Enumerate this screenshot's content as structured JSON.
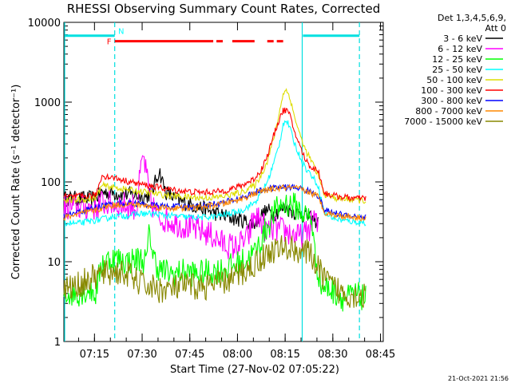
{
  "chart_data": {
    "type": "line",
    "title": "RHESSI Observing Summary Count Rates, Corrected",
    "xlabel": "Start Time (27-Nov-02 07:05:22)",
    "ylabel": "Corrected Count Rate (s⁻¹ detector⁻¹)",
    "ylim": [
      1,
      10000
    ],
    "yscale": "log",
    "xlim_minutes_after_start": [
      0,
      100.5
    ],
    "xticks": [
      {
        "label": "07:15",
        "t": 9.63
      },
      {
        "label": "07:30",
        "t": 24.63
      },
      {
        "label": "07:45",
        "t": 39.63
      },
      {
        "label": "08:00",
        "t": 54.63
      },
      {
        "label": "08:15",
        "t": 69.63
      },
      {
        "label": "08:30",
        "t": 84.63
      },
      {
        "label": "08:45",
        "t": 99.63
      }
    ],
    "yticks": [
      {
        "label": "1",
        "v": 1
      },
      {
        "label": "10",
        "v": 10
      },
      {
        "label": "100",
        "v": 100
      },
      {
        "label": "1000",
        "v": 1000
      },
      {
        "label": "10000",
        "v": 10000
      }
    ],
    "legend_header": [
      "Det 1,3,4,5,6,9,",
      "Att 0"
    ],
    "legend_position": "right",
    "series": [
      {
        "name": "3 - 6 keV",
        "color": "#000000",
        "points": [
          [
            0,
            62
          ],
          [
            10,
            62
          ],
          [
            12,
            75
          ],
          [
            20,
            70
          ],
          [
            26,
            65
          ],
          [
            28,
            80
          ],
          [
            30,
            140
          ],
          [
            32,
            75
          ],
          [
            36,
            58
          ],
          [
            40,
            52
          ],
          [
            44,
            46
          ],
          [
            48,
            40
          ],
          [
            52,
            36
          ],
          [
            56,
            33
          ],
          [
            60,
            30
          ],
          [
            62,
            38
          ],
          [
            64,
            44
          ],
          [
            66,
            40
          ],
          [
            68,
            44
          ],
          [
            70,
            48
          ],
          [
            72,
            42
          ],
          [
            74,
            40
          ],
          [
            76,
            38
          ],
          [
            78,
            34
          ],
          [
            80,
            32
          ]
        ]
      },
      {
        "name": "6 - 12 keV",
        "color": "#ff00ff",
        "points": [
          [
            0,
            48
          ],
          [
            10,
            48
          ],
          [
            12,
            55
          ],
          [
            18,
            52
          ],
          [
            21,
            50
          ],
          [
            23,
            48
          ],
          [
            24,
            120
          ],
          [
            25,
            210
          ],
          [
            26,
            120
          ],
          [
            27,
            60
          ],
          [
            30,
            36
          ],
          [
            34,
            32
          ],
          [
            38,
            28
          ],
          [
            42,
            25
          ],
          [
            46,
            22
          ],
          [
            50,
            17
          ],
          [
            54,
            15
          ],
          [
            58,
            20
          ],
          [
            60,
            38
          ],
          [
            62,
            32
          ],
          [
            64,
            24
          ],
          [
            66,
            26
          ],
          [
            68,
            25
          ],
          [
            70,
            24
          ],
          [
            72,
            22
          ],
          [
            74,
            20
          ],
          [
            76,
            22
          ],
          [
            79,
            36
          ],
          [
            80,
            24
          ]
        ]
      },
      {
        "name": "12 - 25 keV",
        "color": "#00ff00",
        "points": [
          [
            0,
            4
          ],
          [
            4,
            4
          ],
          [
            8,
            4.5
          ],
          [
            10,
            4
          ],
          [
            12,
            10
          ],
          [
            16,
            11
          ],
          [
            20,
            10
          ],
          [
            24,
            11
          ],
          [
            26,
            10
          ],
          [
            27,
            26
          ],
          [
            28,
            12
          ],
          [
            30,
            8
          ],
          [
            34,
            7
          ],
          [
            38,
            7.5
          ],
          [
            42,
            7
          ],
          [
            46,
            7.5
          ],
          [
            50,
            8
          ],
          [
            54,
            9
          ],
          [
            58,
            11
          ],
          [
            60,
            13
          ],
          [
            62,
            18
          ],
          [
            64,
            28
          ],
          [
            66,
            40
          ],
          [
            68,
            50
          ],
          [
            70,
            54
          ],
          [
            72,
            52
          ],
          [
            74,
            45
          ],
          [
            76,
            38
          ],
          [
            78,
            35
          ],
          [
            79,
            12
          ],
          [
            81,
            5
          ],
          [
            84,
            4.5
          ],
          [
            88,
            3.5
          ],
          [
            92,
            3.8
          ],
          [
            95,
            3.5
          ]
        ]
      },
      {
        "name": "25 - 50 keV",
        "color": "#00ffff",
        "points": [
          [
            0,
            31
          ],
          [
            4,
            30
          ],
          [
            8,
            32
          ],
          [
            12,
            34
          ],
          [
            16,
            37
          ],
          [
            20,
            38
          ],
          [
            24,
            40
          ],
          [
            28,
            40
          ],
          [
            32,
            38
          ],
          [
            36,
            37
          ],
          [
            40,
            36
          ],
          [
            44,
            36
          ],
          [
            48,
            37
          ],
          [
            52,
            40
          ],
          [
            56,
            44
          ],
          [
            60,
            55
          ],
          [
            62,
            70
          ],
          [
            64,
            100
          ],
          [
            66,
            170
          ],
          [
            68,
            320
          ],
          [
            69,
            550
          ],
          [
            70,
            580
          ],
          [
            71,
            500
          ],
          [
            72,
            350
          ],
          [
            74,
            220
          ],
          [
            76,
            150
          ],
          [
            78,
            120
          ],
          [
            80,
            90
          ],
          [
            82,
            40
          ],
          [
            86,
            34
          ],
          [
            90,
            32
          ],
          [
            95,
            31
          ]
        ]
      },
      {
        "name": "50 - 100 keV",
        "color": "#dddd00",
        "points": [
          [
            0,
            58
          ],
          [
            10,
            62
          ],
          [
            12,
            90
          ],
          [
            16,
            85
          ],
          [
            20,
            80
          ],
          [
            24,
            76
          ],
          [
            28,
            72
          ],
          [
            32,
            68
          ],
          [
            36,
            66
          ],
          [
            40,
            64
          ],
          [
            44,
            63
          ],
          [
            48,
            64
          ],
          [
            52,
            68
          ],
          [
            56,
            75
          ],
          [
            60,
            90
          ],
          [
            62,
            120
          ],
          [
            64,
            180
          ],
          [
            66,
            350
          ],
          [
            68,
            800
          ],
          [
            69,
            1300
          ],
          [
            70,
            1400
          ],
          [
            71,
            1200
          ],
          [
            72,
            800
          ],
          [
            74,
            420
          ],
          [
            76,
            250
          ],
          [
            78,
            180
          ],
          [
            80,
            120
          ],
          [
            82,
            70
          ],
          [
            86,
            62
          ],
          [
            90,
            60
          ],
          [
            95,
            58
          ]
        ]
      },
      {
        "name": "100 - 300 keV",
        "color": "#ff0000",
        "points": [
          [
            0,
            65
          ],
          [
            6,
            66
          ],
          [
            10,
            68
          ],
          [
            12,
            120
          ],
          [
            16,
            112
          ],
          [
            20,
            102
          ],
          [
            24,
            94
          ],
          [
            28,
            88
          ],
          [
            32,
            82
          ],
          [
            36,
            78
          ],
          [
            40,
            75
          ],
          [
            44,
            74
          ],
          [
            48,
            75
          ],
          [
            52,
            80
          ],
          [
            56,
            90
          ],
          [
            60,
            110
          ],
          [
            62,
            140
          ],
          [
            64,
            210
          ],
          [
            66,
            380
          ],
          [
            68,
            650
          ],
          [
            69,
            780
          ],
          [
            70,
            800
          ],
          [
            71,
            700
          ],
          [
            72,
            500
          ],
          [
            74,
            300
          ],
          [
            76,
            190
          ],
          [
            78,
            150
          ],
          [
            80,
            140
          ],
          [
            82,
            72
          ],
          [
            86,
            66
          ],
          [
            90,
            63
          ],
          [
            95,
            62
          ]
        ]
      },
      {
        "name": "300 - 800 keV",
        "color": "#0000ff",
        "points": [
          [
            0,
            37
          ],
          [
            10,
            48
          ],
          [
            14,
            52
          ],
          [
            18,
            54
          ],
          [
            22,
            54
          ],
          [
            26,
            52
          ],
          [
            30,
            50
          ],
          [
            34,
            49
          ],
          [
            38,
            49
          ],
          [
            42,
            50
          ],
          [
            46,
            52
          ],
          [
            50,
            55
          ],
          [
            54,
            60
          ],
          [
            58,
            68
          ],
          [
            62,
            78
          ],
          [
            66,
            84
          ],
          [
            70,
            86
          ],
          [
            74,
            84
          ],
          [
            78,
            74
          ],
          [
            80,
            68
          ],
          [
            82,
            44
          ],
          [
            86,
            40
          ],
          [
            90,
            38
          ],
          [
            95,
            36
          ]
        ]
      },
      {
        "name": "800 - 7000 keV",
        "color": "#ff8800",
        "points": [
          [
            0,
            36
          ],
          [
            10,
            44
          ],
          [
            14,
            50
          ],
          [
            18,
            52
          ],
          [
            22,
            52
          ],
          [
            26,
            50
          ],
          [
            30,
            48
          ],
          [
            34,
            47
          ],
          [
            38,
            47
          ],
          [
            42,
            48
          ],
          [
            46,
            50
          ],
          [
            50,
            53
          ],
          [
            54,
            58
          ],
          [
            58,
            66
          ],
          [
            62,
            76
          ],
          [
            66,
            82
          ],
          [
            70,
            85
          ],
          [
            74,
            82
          ],
          [
            78,
            72
          ],
          [
            80,
            66
          ],
          [
            82,
            42
          ],
          [
            86,
            38
          ],
          [
            90,
            37
          ],
          [
            95,
            35
          ]
        ]
      },
      {
        "name": "7000 - 15000 keV",
        "color": "#888800",
        "points": [
          [
            0,
            4.5
          ],
          [
            4,
            5
          ],
          [
            8,
            6
          ],
          [
            12,
            7
          ],
          [
            16,
            7.5
          ],
          [
            20,
            7
          ],
          [
            22,
            6
          ],
          [
            26,
            5
          ],
          [
            30,
            4.5
          ],
          [
            34,
            4.5
          ],
          [
            38,
            5
          ],
          [
            42,
            4.8
          ],
          [
            46,
            5
          ],
          [
            50,
            5.5
          ],
          [
            54,
            6.5
          ],
          [
            58,
            8
          ],
          [
            62,
            11
          ],
          [
            66,
            14
          ],
          [
            70,
            15
          ],
          [
            74,
            14
          ],
          [
            78,
            12
          ],
          [
            80,
            8
          ],
          [
            84,
            5
          ],
          [
            88,
            4
          ],
          [
            92,
            3.8
          ],
          [
            95,
            3.8
          ]
        ]
      }
    ],
    "flag_labels": [
      {
        "text": "F",
        "color": "#ff0000"
      },
      {
        "text": "N",
        "color": "#00ffff"
      }
    ],
    "flag_bars": {
      "attenuator_gaps_cyan": [
        [
          0,
          16
        ],
        [
          75,
          93
        ]
      ],
      "flare_red": [
        [
          16,
          47
        ],
        [
          48,
          50
        ],
        [
          53,
          60
        ],
        [
          64,
          66
        ],
        [
          67,
          69
        ]
      ]
    },
    "vertical_markers_cyan": [
      0,
      16,
      75,
      93
    ],
    "timestamp": "21-Oct-2021 21:56"
  }
}
